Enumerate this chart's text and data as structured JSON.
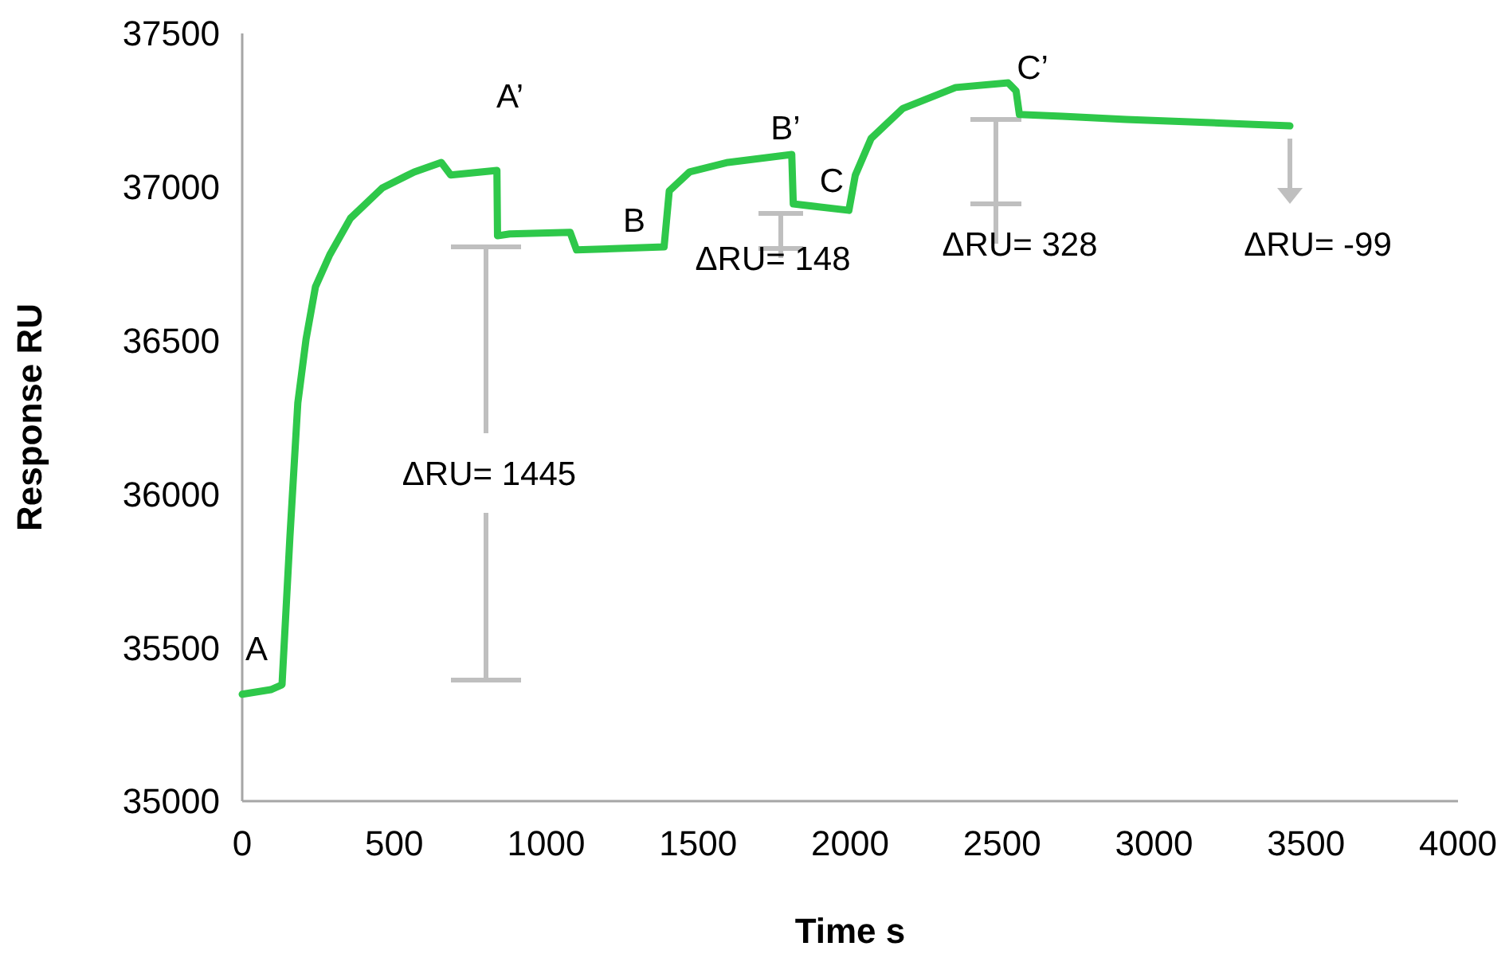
{
  "chart_data": {
    "type": "line",
    "xlabel": "Time s",
    "ylabel": "Response RU",
    "xlim": [
      0,
      4000
    ],
    "xticks": [
      0,
      500,
      1000,
      1500,
      2000,
      2500,
      3000,
      3500,
      4000
    ],
    "ylim": [
      35000,
      37500
    ],
    "yticks": [
      35000,
      35500,
      36000,
      36500,
      37000,
      37500
    ],
    "grid": false,
    "marker": "none",
    "line_style": "solid",
    "series": [
      {
        "color": "#2ec84a",
        "x": [
          0,
          94,
          131,
          157,
          183,
          210,
          241,
          288,
          356,
          461,
          566,
          655,
          686,
          838,
          840,
          880,
          1079,
          1100,
          1388,
          1405,
          1472,
          1598,
          1808,
          1813,
          1996,
          2017,
          2069,
          2174,
          2347,
          2520,
          2546,
          2557,
          2698,
          2908,
          3327,
          3447
        ],
        "values": [
          35348,
          35363,
          35379,
          35861,
          36297,
          36504,
          36675,
          36779,
          36898,
          36997,
          37049,
          37080,
          37039,
          37054,
          36841,
          36847,
          36852,
          36795,
          36805,
          36987,
          37049,
          37080,
          37106,
          36945,
          36924,
          37038,
          37158,
          37256,
          37324,
          37339,
          37313,
          37236,
          37230,
          37220,
          37204,
          37199
        ]
      }
    ],
    "annotations": [
      "A",
      "A’",
      "B",
      "B’",
      "C",
      "C’",
      "ΔRU= 1445",
      "ΔRU= 148",
      "ΔRU= 328",
      {
        "text": "ΔRU= -99",
        "x": 3447,
        "y": 37199
      }
    ]
  }
}
